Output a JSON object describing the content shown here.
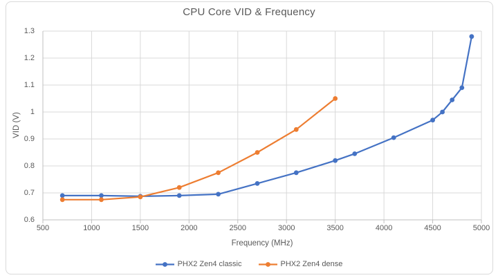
{
  "chart_data": {
    "type": "line",
    "title": "CPU Core VID & Frequency",
    "xlabel": "Frequency (MHz)",
    "ylabel": "VID (V)",
    "xlim": [
      500,
      5000
    ],
    "ylim": [
      0.6,
      1.3
    ],
    "x_ticks": [
      "500",
      "1000",
      "1500",
      "2000",
      "2500",
      "3000",
      "3500",
      "4000",
      "4500",
      "5000"
    ],
    "y_ticks": [
      "0.6",
      "0.7",
      "0.8",
      "0.9",
      "1",
      "1.1",
      "1.2",
      "1.3"
    ],
    "grid": true,
    "legend_position": "bottom",
    "series": [
      {
        "name": "PHX2 Zen4 classic",
        "color": "#4472C4",
        "points": [
          [
            700,
            0.69
          ],
          [
            1100,
            0.69
          ],
          [
            1500,
            0.6875
          ],
          [
            1900,
            0.69
          ],
          [
            2300,
            0.695
          ],
          [
            2700,
            0.735
          ],
          [
            3100,
            0.775
          ],
          [
            3500,
            0.82
          ],
          [
            3700,
            0.845
          ],
          [
            4100,
            0.905
          ],
          [
            4500,
            0.97
          ],
          [
            4600,
            1.0
          ],
          [
            4700,
            1.045
          ],
          [
            4800,
            1.09
          ],
          [
            4900,
            1.28
          ]
        ]
      },
      {
        "name": "PHX2 Zen4 dense",
        "color": "#ED7D31",
        "points": [
          [
            700,
            0.675
          ],
          [
            1100,
            0.675
          ],
          [
            1500,
            0.685
          ],
          [
            1900,
            0.72
          ],
          [
            2300,
            0.775
          ],
          [
            2700,
            0.85
          ],
          [
            3100,
            0.935
          ],
          [
            3500,
            1.05
          ]
        ]
      }
    ]
  },
  "style": {
    "background": "#FFFFFF",
    "text_color": "#595959",
    "gridline_color": "#D9D9D9",
    "axis_line_color": "#BFBFBF",
    "frame_border_color": "#D9D9D9"
  }
}
